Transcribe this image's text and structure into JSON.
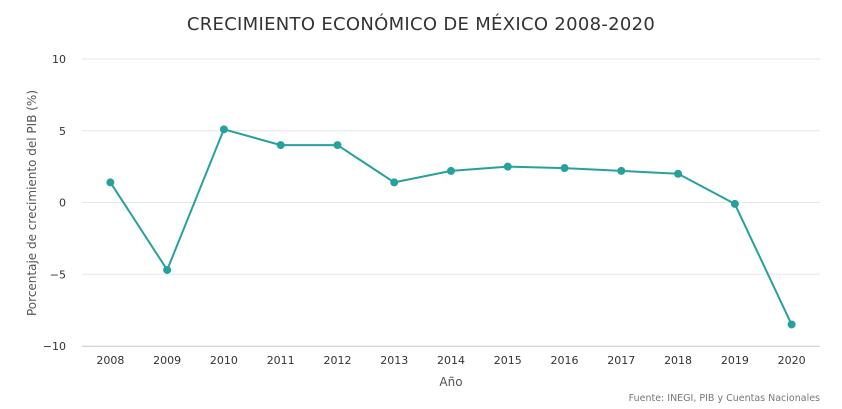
{
  "chart_data": {
    "type": "line",
    "title": "CRECIMIENTO ECONÓMICO DE MÉXICO 2008-2020",
    "xlabel": "Año",
    "ylabel": "Porcentaje de crecimiento del PIB (%)",
    "credit": "Fuente: INEGI, PIB y Cuentas Nacionales",
    "ylim": [
      -10,
      10
    ],
    "yticks": [
      -10,
      -5,
      0,
      5,
      10
    ],
    "ytick_labels": [
      "−10",
      "−5",
      "0",
      "5",
      "10"
    ],
    "grid": true,
    "categories": [
      "2008",
      "2009",
      "2010",
      "2011",
      "2012",
      "2013",
      "2014",
      "2015",
      "2016",
      "2017",
      "2018",
      "2019",
      "2020"
    ],
    "series": [
      {
        "values": [
          1.4,
          -4.7,
          5.1,
          4.0,
          4.0,
          1.4,
          2.2,
          2.5,
          2.4,
          2.2,
          2.0,
          -0.1,
          -8.5
        ]
      }
    ],
    "colors": {
      "line": "#26a19b",
      "grid": "#e6e6e6",
      "axis": "#ccd6eb"
    }
  }
}
